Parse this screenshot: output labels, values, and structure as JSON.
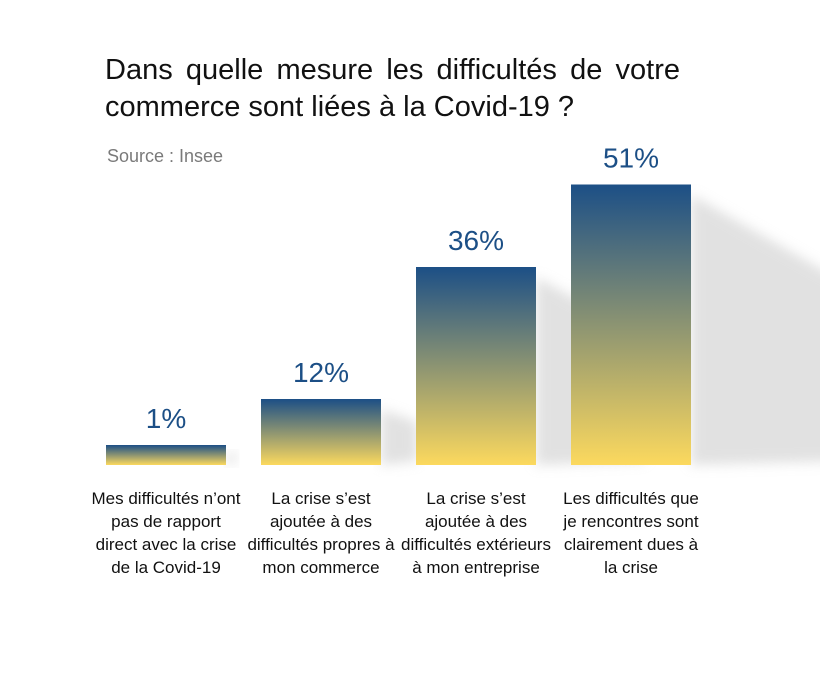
{
  "title": "Dans quelle mesure les difficultés de votre commerce sont liées à la Covid-19 ?",
  "source": "Source : Insee",
  "colors": {
    "top": "#1c4f86",
    "bottom": "#fcd95e",
    "value_text": "#1c4f86"
  },
  "chart_data": {
    "type": "bar",
    "title": "Dans quelle mesure les difficultés de votre commerce sont liées à la Covid-19 ?",
    "categories": [
      "Mes difficultés n’ont pas de rapport direct avec la crise de la Covid-19",
      "La crise s’est ajoutée à des difficultés propres à mon commerce",
      "La crise s’est ajoutée à des difficultés extérieurs à mon entreprise",
      "Les difficultés que je rencontres sont clairement dues à la crise"
    ],
    "values": [
      1,
      12,
      36,
      51
    ],
    "value_labels": [
      "1%",
      "12%",
      "36%",
      "51%"
    ],
    "unit": "%",
    "grid": false,
    "legend": "none"
  }
}
